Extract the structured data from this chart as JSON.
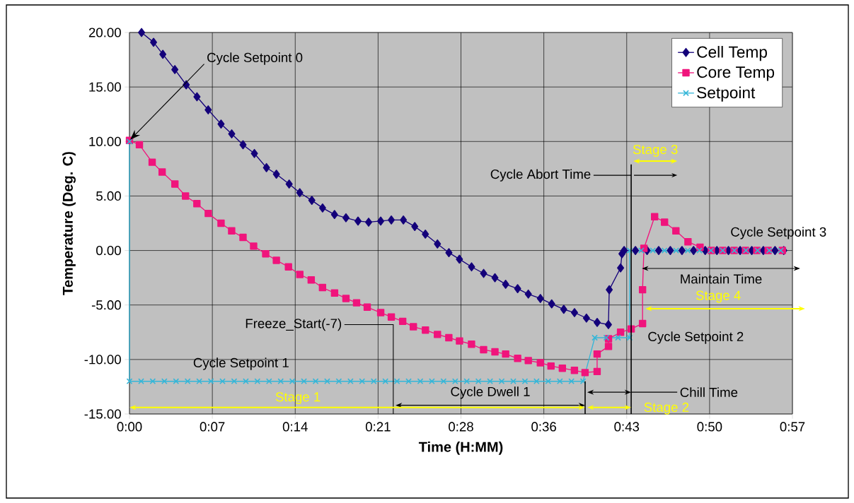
{
  "chart_data": {
    "type": "line",
    "xlabel": "Time (H:MM)",
    "ylabel": "Temperature (Deg. C)",
    "xlim": [
      0,
      0.95
    ],
    "ylim": [
      -15,
      20
    ],
    "xticks": [
      {
        "value": 0,
        "label": "0:00"
      },
      {
        "value": 0.11875,
        "label": "0:07"
      },
      {
        "value": 0.2375,
        "label": "0:14"
      },
      {
        "value": 0.35625,
        "label": "0:21"
      },
      {
        "value": 0.475,
        "label": "0:28"
      },
      {
        "value": 0.59375,
        "label": "0:36"
      },
      {
        "value": 0.7125,
        "label": "0:43"
      },
      {
        "value": 0.83125,
        "label": "0:50"
      },
      {
        "value": 0.95,
        "label": "0:57"
      }
    ],
    "yticks": [
      {
        "value": -15,
        "label": "-15.00"
      },
      {
        "value": -10,
        "label": "-10.00"
      },
      {
        "value": -5,
        "label": "-5.00"
      },
      {
        "value": 0,
        "label": "0.00"
      },
      {
        "value": 5,
        "label": "5.00"
      },
      {
        "value": 10,
        "label": "10.00"
      },
      {
        "value": 15,
        "label": "15.00"
      },
      {
        "value": 20,
        "label": "20.00"
      }
    ],
    "grid": true,
    "legend": "top right",
    "line_style": "solid",
    "series": [
      {
        "name": "Cell Temp",
        "color": "#14007a",
        "marker": "diamond",
        "x": [
          0.0173,
          0.0345,
          0.0478,
          0.065,
          0.0813,
          0.0967,
          0.1128,
          0.1312,
          0.1465,
          0.1627,
          0.179,
          0.1963,
          0.2105,
          0.2288,
          0.244,
          0.2613,
          0.2767,
          0.2938,
          0.3102,
          0.3275,
          0.3427,
          0.36,
          0.3752,
          0.3925,
          0.4088,
          0.424,
          0.4413,
          0.4577,
          0.4728,
          0.4902,
          0.5075,
          0.5237,
          0.539,
          0.5562,
          0.5715,
          0.5888,
          0.605,
          0.6223,
          0.6377,
          0.6548,
          0.6702,
          0.6863,
          0.6875,
          0.7037,
          0.7057,
          0.7088,
          0.725,
          0.7417,
          0.7583,
          0.775,
          0.7917,
          0.8083,
          0.825,
          0.8417,
          0.8583,
          0.875,
          0.8917,
          0.9083,
          0.925,
          0.9375
        ],
        "values": [
          20.0,
          19.1,
          18.0,
          16.6,
          15.2,
          14.1,
          12.9,
          11.6,
          10.7,
          9.7,
          8.9,
          7.6,
          7.0,
          6.1,
          5.3,
          4.6,
          3.9,
          3.3,
          3.0,
          2.7,
          2.6,
          2.7,
          2.8,
          2.8,
          2.2,
          1.5,
          0.6,
          -0.2,
          -0.8,
          -1.5,
          -2.1,
          -2.5,
          -3.1,
          -3.5,
          -4.0,
          -4.4,
          -4.9,
          -5.4,
          -5.7,
          -6.2,
          -6.6,
          -6.8,
          -3.6,
          -1.6,
          -0.3,
          0.0,
          0.0,
          0.0,
          0.0,
          0.0,
          0.0,
          0.0,
          0.0,
          0.0,
          0.0,
          0.0,
          0.0,
          0.0,
          0.0,
          0.0
        ]
      },
      {
        "name": "Core Temp",
        "color": "#f0147c",
        "marker": "square",
        "x": [
          0,
          0.0142,
          0.0325,
          0.0468,
          0.0651,
          0.0803,
          0.0966,
          0.1129,
          0.1312,
          0.1464,
          0.1627,
          0.1779,
          0.1952,
          0.2105,
          0.2278,
          0.2441,
          0.2604,
          0.2766,
          0.2939,
          0.3102,
          0.3254,
          0.3407,
          0.36,
          0.3752,
          0.3915,
          0.4068,
          0.4241,
          0.4413,
          0.4576,
          0.4729,
          0.4901,
          0.5074,
          0.5237,
          0.539,
          0.5562,
          0.5715,
          0.5888,
          0.604,
          0.6203,
          0.6376,
          0.6528,
          0.6701,
          0.6701,
          0.6864,
          0.6864,
          0.7037,
          0.7189,
          0.7352,
          0.7352,
          0.7372,
          0.7525,
          0.7667,
          0.783,
          0.8003,
          0.8176,
          0.8338,
          0.8501,
          0.8664,
          0.8827,
          0.8989,
          0.9152,
          0.9355
        ],
        "values": [
          10.1,
          9.7,
          8.1,
          7.2,
          6.1,
          5.0,
          4.3,
          3.4,
          2.5,
          1.8,
          1.2,
          0.4,
          -0.3,
          -0.9,
          -1.5,
          -2.2,
          -2.7,
          -3.4,
          -3.9,
          -4.4,
          -4.8,
          -5.2,
          -5.7,
          -6.1,
          -6.5,
          -7.0,
          -7.3,
          -7.7,
          -8.0,
          -8.3,
          -8.6,
          -9.1,
          -9.3,
          -9.5,
          -9.9,
          -10.1,
          -10.3,
          -10.6,
          -10.8,
          -11.0,
          -11.2,
          -11.1,
          -9.5,
          -8.8,
          -8.1,
          -7.5,
          -7.2,
          -6.7,
          -3.6,
          0.2,
          3.1,
          2.6,
          1.8,
          0.8,
          0.3,
          0.0,
          0.0,
          0.0,
          0.0,
          0.0,
          0.0,
          0.0
        ]
      },
      {
        "name": "Setpoint",
        "color": "#35b6d8",
        "marker": "cross",
        "x": [
          0,
          0,
          0.0167,
          0.0333,
          0.05,
          0.0667,
          0.0833,
          0.1,
          0.1167,
          0.1333,
          0.15,
          0.1667,
          0.1833,
          0.2,
          0.2167,
          0.2333,
          0.25,
          0.2667,
          0.2833,
          0.3,
          0.3167,
          0.3333,
          0.35,
          0.3667,
          0.3833,
          0.4,
          0.4167,
          0.4333,
          0.45,
          0.4667,
          0.4833,
          0.5,
          0.5167,
          0.5333,
          0.55,
          0.5667,
          0.5833,
          0.6,
          0.6167,
          0.6333,
          0.65,
          0.6667,
          0.6833,
          0.7,
          0.7167,
          0.7167,
          0.7333,
          0.75,
          0.7667,
          0.7833,
          0.8,
          0.8167,
          0.8333,
          0.85,
          0.8667,
          0.8833,
          0.9,
          0.9167,
          0.9333
        ],
        "values": [
          10,
          -12,
          -12,
          -12,
          -12,
          -12,
          -12,
          -12,
          -12,
          -12,
          -12,
          -12,
          -12,
          -12,
          -12,
          -12,
          -12,
          -12,
          -12,
          -12,
          -12,
          -12,
          -12,
          -12,
          -12,
          -12,
          -12,
          -12,
          -12,
          -12,
          -12,
          -12,
          -12,
          -12,
          -12,
          -12,
          -12,
          -12,
          -12,
          -12,
          -12,
          -8,
          -8,
          -8,
          -8,
          0,
          0,
          0,
          0,
          0,
          0,
          0,
          0,
          0,
          0,
          0,
          0,
          0,
          0
        ]
      }
    ],
    "annotations": [
      "Cycle Setpoint 0",
      "Cycle Setpoint 1",
      "Freeze_Start(-7)",
      "Cycle Dwell 1",
      "Cycle Abort Time",
      "Stage 3",
      "Cycle Setpoint 3",
      "Maintain Time",
      "Stage 4",
      "Cycle Setpoint 2",
      "Chill Time",
      "Stage 2",
      "Stage 1"
    ]
  }
}
